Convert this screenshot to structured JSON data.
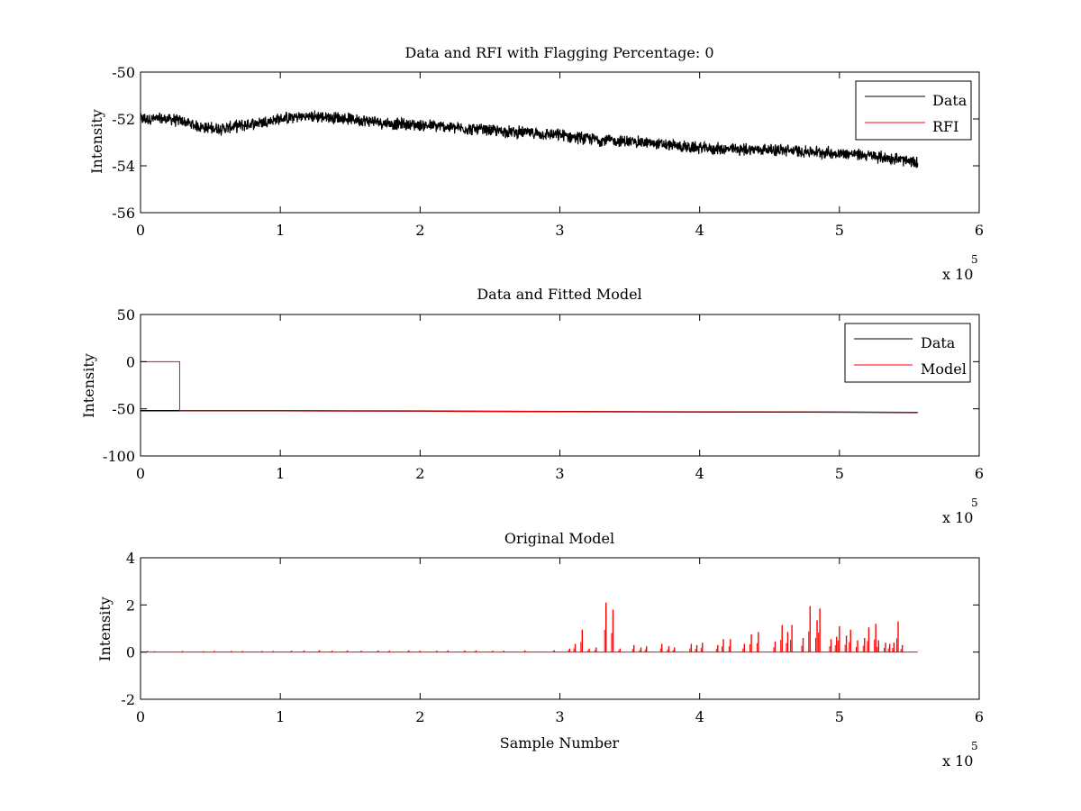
{
  "colors": {
    "data": "#000000",
    "rfi": "#ff0000",
    "model": "#ff0000",
    "background": "#ffffff"
  },
  "chart_data": [
    {
      "type": "line",
      "title": "Data and RFI with Flagging Percentage: 0",
      "xlabel": "",
      "ylabel": "Intensity",
      "xlim": [
        0,
        600000
      ],
      "ylim": [
        -56,
        -50
      ],
      "xticks": [
        0,
        1,
        2,
        3,
        4,
        5,
        6
      ],
      "yticks": [
        -56,
        -54,
        -52,
        -50
      ],
      "x_exponent_label": "x 10",
      "x_exponent": "5",
      "legend_position": "top-right",
      "series": [
        {
          "name": "Data",
          "color": "#000000",
          "x": [
            0,
            10000,
            20000,
            30000,
            40000,
            50000,
            60000,
            70000,
            80000,
            100000,
            115000,
            130000,
            150000,
            180000,
            210000,
            250000,
            280000,
            300000,
            330000,
            360000,
            390000,
            420000,
            450000,
            480000,
            510000,
            540000,
            556000
          ],
          "y": [
            -52.0,
            -52.0,
            -52.0,
            -52.1,
            -52.3,
            -52.4,
            -52.4,
            -52.3,
            -52.2,
            -52.0,
            -51.9,
            -51.9,
            -52.0,
            -52.2,
            -52.3,
            -52.5,
            -52.6,
            -52.7,
            -52.9,
            -53.0,
            -53.2,
            -53.3,
            -53.3,
            -53.4,
            -53.5,
            -53.7,
            -53.9
          ],
          "noise": 0.22
        },
        {
          "name": "RFI",
          "color": "#ff0000",
          "x": [],
          "y": []
        }
      ]
    },
    {
      "type": "line",
      "title": "Data and Fitted Model",
      "xlabel": "",
      "ylabel": "Intensity",
      "xlim": [
        0,
        600000
      ],
      "ylim": [
        -100,
        50
      ],
      "xticks": [
        0,
        1,
        2,
        3,
        4,
        5,
        6
      ],
      "yticks": [
        -100,
        -50,
        0,
        50
      ],
      "x_exponent_label": "x 10",
      "x_exponent": "5",
      "legend_position": "top-right",
      "series": [
        {
          "name": "Data",
          "color": "#000000",
          "x": [
            0,
            100000,
            200000,
            300000,
            400000,
            500000,
            556000
          ],
          "y": [
            -52.0,
            -52.0,
            -52.4,
            -52.9,
            -53.3,
            -53.5,
            -53.9
          ]
        },
        {
          "name": "Model",
          "color": "#ff0000",
          "x": [
            0,
            28000,
            28000,
            100000,
            200000,
            300000,
            400000,
            500000,
            556000
          ],
          "y": [
            0,
            0,
            -52.0,
            -52.0,
            -52.4,
            -52.9,
            -53.3,
            -53.5,
            -53.9
          ]
        }
      ]
    },
    {
      "type": "line",
      "title": "Original Model",
      "xlabel": "Sample Number",
      "ylabel": "Intensity",
      "xlim": [
        0,
        600000
      ],
      "ylim": [
        -2,
        4
      ],
      "xticks": [
        0,
        1,
        2,
        3,
        4,
        5,
        6
      ],
      "yticks": [
        -2,
        0,
        2,
        4
      ],
      "x_exponent_label": "x 10",
      "x_exponent": "5",
      "baseline_end": 556000,
      "series": [
        {
          "name": "Model",
          "color": "#ff0000",
          "spikes": [
            [
              5000,
              0.05
            ],
            [
              10000,
              0.04
            ],
            [
              30000,
              0.05
            ],
            [
              45000,
              0.04
            ],
            [
              53000,
              0.05
            ],
            [
              65000,
              0.05
            ],
            [
              73000,
              0.05
            ],
            [
              87000,
              0.05
            ],
            [
              95000,
              0.05
            ],
            [
              108000,
              0.06
            ],
            [
              117000,
              0.07
            ],
            [
              128000,
              0.08
            ],
            [
              137000,
              0.06
            ],
            [
              148000,
              0.07
            ],
            [
              158000,
              0.06
            ],
            [
              170000,
              0.07
            ],
            [
              178000,
              0.06
            ],
            [
              192000,
              0.07
            ],
            [
              200000,
              0.06
            ],
            [
              212000,
              0.06
            ],
            [
              220000,
              0.07
            ],
            [
              232000,
              0.07
            ],
            [
              240000,
              0.07
            ],
            [
              252000,
              0.06
            ],
            [
              260000,
              0.06
            ],
            [
              275000,
              0.07
            ],
            [
              296000,
              0.08
            ],
            [
              307000,
              0.15
            ],
            [
              311000,
              0.35
            ],
            [
              316000,
              0.95
            ],
            [
              321000,
              0.15
            ],
            [
              326000,
              0.2
            ],
            [
              333000,
              2.1
            ],
            [
              338000,
              1.8
            ],
            [
              343000,
              0.15
            ],
            [
              353000,
              0.3
            ],
            [
              358000,
              0.2
            ],
            [
              362000,
              0.25
            ],
            [
              373000,
              0.35
            ],
            [
              378000,
              0.25
            ],
            [
              382000,
              0.2
            ],
            [
              394000,
              0.35
            ],
            [
              398000,
              0.3
            ],
            [
              402000,
              0.4
            ],
            [
              413000,
              0.3
            ],
            [
              417000,
              0.55
            ],
            [
              422000,
              0.55
            ],
            [
              432000,
              0.35
            ],
            [
              437000,
              0.75
            ],
            [
              442000,
              0.85
            ],
            [
              454000,
              0.45
            ],
            [
              459000,
              1.15
            ],
            [
              463000,
              0.85
            ],
            [
              466000,
              1.15
            ],
            [
              474000,
              0.6
            ],
            [
              479000,
              1.95
            ],
            [
              484000,
              1.35
            ],
            [
              486000,
              1.85
            ],
            [
              494000,
              0.55
            ],
            [
              498000,
              0.65
            ],
            [
              500000,
              1.1
            ],
            [
              505000,
              0.7
            ],
            [
              508000,
              0.95
            ],
            [
              513000,
              0.5
            ],
            [
              518000,
              0.6
            ],
            [
              521000,
              1.05
            ],
            [
              526000,
              1.2
            ],
            [
              528000,
              0.5
            ],
            [
              533000,
              0.4
            ],
            [
              536000,
              0.35
            ],
            [
              539000,
              0.4
            ],
            [
              542000,
              1.3
            ],
            [
              545000,
              0.3
            ]
          ]
        }
      ]
    }
  ]
}
